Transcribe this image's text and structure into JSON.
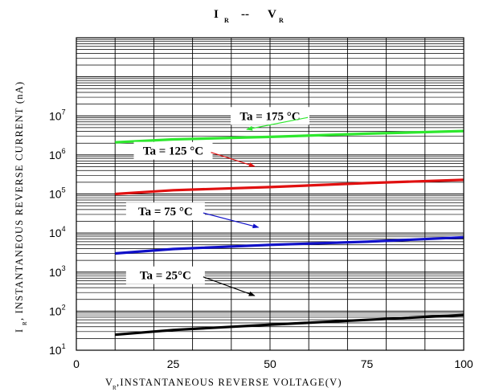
{
  "chart_data": {
    "type": "line",
    "title": {
      "main": "I",
      "main_sub": "R",
      "sep": "--",
      "tail": "V",
      "tail_sub": "R"
    },
    "xlabel": {
      "pre": "V",
      "sub": "R",
      "post": ",INSTANTANEOUS  REVERSE  VOLTAGE(V)"
    },
    "ylabel": {
      "pre": "I",
      "sub": "R",
      "post": ", INSTANTANEOUS  REVERSE  CURRENT  (nA)"
    },
    "xlim": [
      0,
      100
    ],
    "ylim": [
      10,
      1000000000
    ],
    "yscale": "log",
    "grid": true,
    "x_ticks": [
      "0",
      "25",
      "50",
      "75",
      "100"
    ],
    "y_ticks": [
      {
        "base": "10",
        "exp": "1"
      },
      {
        "base": "10",
        "exp": "2"
      },
      {
        "base": "10",
        "exp": "3"
      },
      {
        "base": "10",
        "exp": "4"
      },
      {
        "base": "10",
        "exp": "5"
      },
      {
        "base": "10",
        "exp": "6"
      },
      {
        "base": "10",
        "exp": "7"
      }
    ],
    "series": [
      {
        "name": "Ta = 175 °C",
        "color": "#2ee82e",
        "x": [
          10,
          25,
          50,
          75,
          100
        ],
        "y": [
          2100000,
          2500000,
          2900000,
          3500000,
          4100000
        ],
        "label_at": [
          50,
          10000000.0
        ],
        "arrow_to": [
          44,
          4500000
        ]
      },
      {
        "name": "Ta = 125 °C",
        "color": "#e01010",
        "x": [
          10,
          25,
          50,
          75,
          100
        ],
        "y": [
          100000,
          125000,
          150000,
          190000,
          230000
        ],
        "label_at": [
          25,
          1280000.0
        ],
        "arrow_to": [
          46,
          510000
        ]
      },
      {
        "name": "Ta = 75 °C",
        "color": "#1010c8",
        "x": [
          10,
          25,
          50,
          75,
          100
        ],
        "y": [
          3000,
          3900,
          5000,
          6000,
          7800
        ],
        "label_at": [
          23,
          36000
        ],
        "arrow_to": [
          47,
          14000
        ]
      },
      {
        "name": "Ta = 25°C",
        "color": "#000000",
        "x": [
          10,
          25,
          50,
          75,
          100
        ],
        "y": [
          25,
          33,
          45,
          60,
          80
        ],
        "label_at": [
          23,
          830
        ],
        "arrow_to": [
          46,
          250
        ]
      }
    ]
  }
}
